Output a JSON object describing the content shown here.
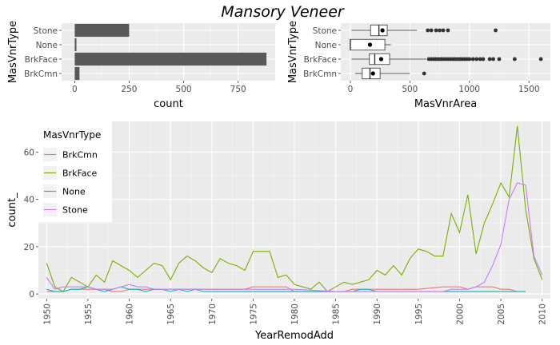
{
  "title": "Mansory Veneer",
  "chart_data": [
    {
      "type": "bar",
      "orientation": "horizontal",
      "categories": [
        "BrkCmn",
        "BrkFace",
        "None",
        "Stone"
      ],
      "values": [
        22,
        880,
        8,
        250
      ],
      "xlabel": "count",
      "ylabel": "MasVnrType",
      "xlim": [
        -60,
        920
      ],
      "xticks": [
        0,
        250,
        500,
        750
      ],
      "bar_color": "#595959"
    },
    {
      "type": "boxplot",
      "orientation": "horizontal",
      "categories": [
        "BrkCmn",
        "BrkFace",
        "None",
        "Stone"
      ],
      "boxes": [
        {
          "category": "BrkCmn",
          "whisker_low": 40,
          "q1": 100,
          "median": 165,
          "q3": 250,
          "whisker_high": 500,
          "mean": 190,
          "outliers": [
            620
          ]
        },
        {
          "category": "BrkFace",
          "whisker_low": 10,
          "q1": 160,
          "median": 205,
          "q3": 330,
          "whisker_high": 640,
          "mean": 259,
          "outliers": [
            660,
            680,
            700,
            720,
            740,
            760,
            780,
            800,
            820,
            840,
            860,
            880,
            900,
            920,
            940,
            960,
            980,
            1000,
            1030,
            1060,
            1090,
            1115,
            1170,
            1200,
            1250,
            1380,
            1600
          ]
        },
        {
          "category": "None",
          "whisker_low": 0,
          "q1": 0,
          "median": 0,
          "q3": 290,
          "whisker_high": 340,
          "mean": 165,
          "outliers": []
        },
        {
          "category": "Stone",
          "whisker_low": 10,
          "q1": 170,
          "median": 240,
          "q3": 310,
          "whisker_high": 560,
          "mean": 270,
          "outliers": [
            650,
            680,
            720,
            750,
            780,
            820,
            1220
          ]
        }
      ],
      "xlabel": "MasVnrArea",
      "ylabel": "MasVnrType",
      "xlim": [
        -80,
        1680
      ],
      "xticks": [
        0,
        500,
        1000,
        1500
      ]
    },
    {
      "type": "line",
      "xlabel": "YearRemodAdd",
      "ylabel": "count_",
      "xlim": [
        1949,
        2011
      ],
      "ylim": [
        -2,
        73
      ],
      "xticks": [
        1950,
        1955,
        1960,
        1965,
        1970,
        1975,
        1980,
        1985,
        1990,
        1995,
        2000,
        2005,
        2010
      ],
      "yticks": [
        0,
        20,
        40,
        60
      ],
      "legend": {
        "title": "MasVnrType",
        "placement": "top-left"
      },
      "series": [
        {
          "name": "BrkCmn",
          "color": "#F8766D",
          "x": [
            1950,
            1951,
            1952,
            1953,
            1954,
            1955,
            1956,
            1957,
            1958,
            1959,
            1960,
            1961,
            1962,
            1963,
            1964,
            1965,
            1966,
            1967,
            1968,
            1969,
            1970,
            1971,
            1972,
            1973,
            1974,
            1975,
            1976,
            1977,
            1978,
            1979,
            1980,
            1985,
            1986,
            1987,
            1988,
            1990,
            1992,
            1995,
            1998,
            2000,
            2001,
            2002,
            2003,
            2004,
            2005,
            2006,
            2007
          ],
          "y": [
            1,
            1,
            1,
            2,
            2,
            2,
            2,
            2,
            1,
            1,
            2,
            2,
            2,
            2,
            2,
            2,
            2,
            2,
            2,
            2,
            2,
            2,
            2,
            2,
            2,
            3,
            3,
            3,
            3,
            3,
            1,
            1,
            1,
            2,
            2,
            2,
            2,
            2,
            3,
            3,
            2,
            3,
            3,
            3,
            2,
            2,
            1
          ]
        },
        {
          "name": "BrkFace",
          "color": "#7CAE00",
          "x": [
            1950,
            1951,
            1952,
            1953,
            1954,
            1955,
            1956,
            1957,
            1958,
            1959,
            1960,
            1961,
            1962,
            1963,
            1964,
            1965,
            1966,
            1967,
            1968,
            1969,
            1970,
            1971,
            1972,
            1973,
            1974,
            1975,
            1976,
            1977,
            1978,
            1979,
            1980,
            1981,
            1982,
            1983,
            1984,
            1985,
            1986,
            1987,
            1988,
            1989,
            1990,
            1991,
            1992,
            1993,
            1994,
            1995,
            1996,
            1997,
            1998,
            1999,
            2000,
            2001,
            2002,
            2003,
            2004,
            2005,
            2006,
            2007,
            2008,
            2009,
            2010
          ],
          "y": [
            13,
            3,
            1,
            7,
            5,
            3,
            8,
            5,
            14,
            12,
            10,
            7,
            10,
            13,
            12,
            6,
            13,
            16,
            14,
            11,
            9,
            15,
            13,
            12,
            10,
            18,
            18,
            18,
            7,
            8,
            4,
            3,
            2,
            5,
            1,
            3,
            5,
            4,
            5,
            6,
            10,
            8,
            12,
            8,
            15,
            19,
            18,
            16,
            16,
            34,
            26,
            42,
            17,
            30,
            38,
            47,
            41,
            71,
            36,
            15,
            6
          ]
        },
        {
          "name": "None",
          "color": "#00BFC4",
          "x": [
            1950,
            1951,
            1952,
            1953,
            1954,
            1955,
            1956,
            1957,
            1958,
            1959,
            1960,
            1961,
            1962,
            1963,
            1964,
            1965,
            1966,
            1967,
            1968,
            1969,
            1970,
            1975,
            1976,
            1977,
            1978,
            1985,
            1986,
            1987,
            1988,
            1989,
            1990,
            1995,
            2000,
            2005,
            2006,
            2007,
            2008
          ],
          "y": [
            2,
            1,
            1,
            2,
            2,
            3,
            2,
            1,
            2,
            3,
            2,
            2,
            1,
            2,
            2,
            1,
            2,
            1,
            2,
            1,
            1,
            1,
            1,
            1,
            1,
            1,
            1,
            1,
            2,
            2,
            1,
            1,
            1,
            1,
            1,
            1,
            1
          ]
        },
        {
          "name": "Stone",
          "color": "#C77CFF",
          "x": [
            1950,
            1951,
            1952,
            1953,
            1954,
            1955,
            1956,
            1957,
            1958,
            1959,
            1960,
            1961,
            1962,
            1963,
            1964,
            1965,
            1966,
            1967,
            1968,
            1969,
            1970,
            1975,
            1980,
            1985,
            1990,
            1995,
            1998,
            1999,
            2000,
            2001,
            2002,
            2003,
            2004,
            2005,
            2006,
            2007,
            2008,
            2009,
            2010
          ],
          "y": [
            7,
            2,
            3,
            3,
            3,
            3,
            2,
            2,
            2,
            3,
            4,
            3,
            3,
            2,
            2,
            2,
            2,
            2,
            2,
            2,
            2,
            2,
            2,
            1,
            1,
            1,
            1,
            2,
            2,
            2,
            3,
            5,
            12,
            21,
            40,
            47,
            46,
            16,
            8
          ]
        }
      ]
    }
  ]
}
